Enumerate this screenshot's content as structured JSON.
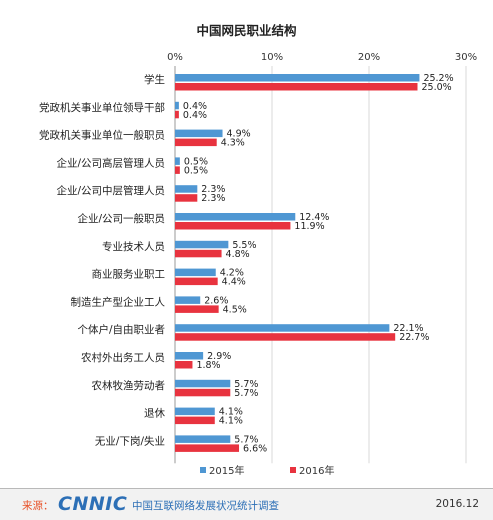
{
  "chart_data": {
    "type": "bar",
    "orientation": "horizontal",
    "title": "中国网民职业结构",
    "categories": [
      "学生",
      "党政机关事业单位领导干部",
      "党政机关事业单位一般职员",
      "企业/公司高层管理人员",
      "企业/公司中层管理人员",
      "企业/公司一般职员",
      "专业技术人员",
      "商业服务业职工",
      "制造生产型企业工人",
      "个体户/自由职业者",
      "农村外出务工人员",
      "农林牧渔劳动者",
      "退休",
      "无业/下岗/失业"
    ],
    "series": [
      {
        "name": "2015年",
        "color": "#4f97d3",
        "values": [
          25.2,
          0.4,
          4.9,
          0.5,
          2.3,
          12.4,
          5.5,
          4.2,
          2.6,
          22.1,
          2.9,
          5.7,
          4.1,
          5.7
        ]
      },
      {
        "name": "2016年",
        "color": "#e8333f",
        "values": [
          25.0,
          0.4,
          4.3,
          0.5,
          2.3,
          11.9,
          4.8,
          4.4,
          4.5,
          22.7,
          1.8,
          5.7,
          4.1,
          6.6
        ]
      }
    ],
    "xlim": [
      0,
      30
    ],
    "xticks": [
      "0%",
      "10%",
      "20%",
      "30%"
    ],
    "value_suffix": "%",
    "grid": true,
    "legend_position": "bottom-center"
  },
  "footer": {
    "source_label": "来源：",
    "logo_text": "CNNIC",
    "survey_name": "中国互联网络发展状况统计调查",
    "date": "2016.12"
  }
}
